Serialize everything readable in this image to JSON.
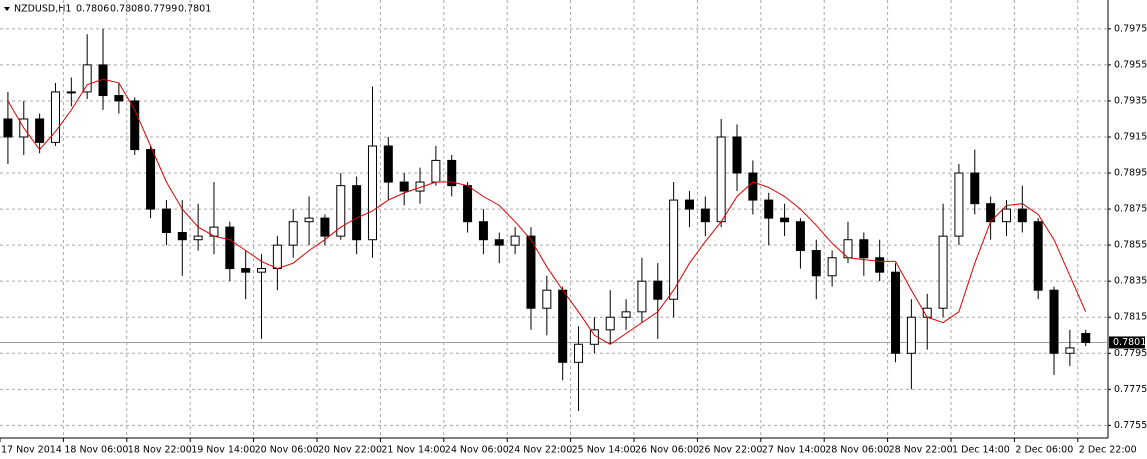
{
  "chart_data": {
    "type": "candlestick",
    "title": "NZDUSD,H1",
    "header_ohlc": [
      0.7806,
      0.7808,
      0.7799,
      0.7801
    ],
    "categories": [
      "17 Nov 2014",
      null,
      null,
      null,
      "18 Nov 06:00",
      null,
      null,
      null,
      "18 Nov 22:00",
      null,
      null,
      null,
      "19 Nov 14:00",
      null,
      null,
      null,
      "20 Nov 06:00",
      null,
      null,
      null,
      "20 Nov 22:00",
      null,
      null,
      null,
      "21 Nov 14:00",
      null,
      null,
      null,
      "24 Nov 06:00",
      null,
      null,
      null,
      "24 Nov 22:00",
      null,
      null,
      null,
      "25 Nov 14:00",
      null,
      null,
      null,
      "26 Nov 06:00",
      null,
      null,
      null,
      "26 Nov 22:00",
      null,
      null,
      null,
      "27 Nov 14:00",
      null,
      null,
      null,
      "28 Nov 06:00",
      null,
      null,
      null,
      "28 Nov 22:00",
      null,
      null,
      null,
      "1 Dec 14:00",
      null,
      null,
      null,
      "2 Dec 06:00",
      null,
      null,
      null,
      "2 Dec 22:00"
    ],
    "open": [
      0.7925,
      0.7915,
      0.7925,
      0.7912,
      0.794,
      0.794,
      0.7955,
      0.7938,
      0.7935,
      0.7908,
      0.7875,
      0.7862,
      0.7858,
      0.786,
      0.7865,
      0.7842,
      0.784,
      0.7842,
      0.7855,
      0.7868,
      0.787,
      0.786,
      0.7888,
      0.7858,
      0.791,
      0.789,
      0.7885,
      0.789,
      0.7902,
      0.7888,
      0.7868,
      0.7858,
      0.7855,
      0.786,
      0.782,
      0.783,
      0.779,
      0.78,
      0.7808,
      0.7815,
      0.7818,
      0.7835,
      0.7825,
      0.788,
      0.7875,
      0.7868,
      0.7915,
      0.7895,
      0.788,
      0.787,
      0.7868,
      0.7852,
      0.7838,
      0.7848,
      0.7858,
      0.7848,
      0.784,
      0.7795,
      0.7815,
      0.782,
      0.786,
      0.7895,
      0.7878,
      0.7868,
      0.7875,
      0.7868,
      0.783,
      0.7795,
      0.7806
    ],
    "high": [
      0.794,
      0.7935,
      0.7928,
      0.7945,
      0.7948,
      0.7972,
      0.7975,
      0.7945,
      0.7937,
      0.791,
      0.788,
      0.788,
      0.7878,
      0.789,
      0.7868,
      0.7852,
      0.785,
      0.786,
      0.7875,
      0.7882,
      0.7872,
      0.7895,
      0.7893,
      0.7943,
      0.7915,
      0.7895,
      0.7898,
      0.791,
      0.7905,
      0.789,
      0.7875,
      0.7862,
      0.7865,
      0.7865,
      0.7838,
      0.7832,
      0.781,
      0.7815,
      0.783,
      0.7825,
      0.7848,
      0.7845,
      0.789,
      0.7885,
      0.7882,
      0.7925,
      0.7922,
      0.7902,
      0.7884,
      0.7878,
      0.787,
      0.7858,
      0.7852,
      0.7868,
      0.7862,
      0.7858,
      0.7845,
      0.7825,
      0.7828,
      0.7878,
      0.79,
      0.7908,
      0.7882,
      0.788,
      0.7888,
      0.787,
      0.7832,
      0.7808,
      0.7808
    ],
    "low": [
      0.79,
      0.7905,
      0.7906,
      0.791,
      0.7932,
      0.7936,
      0.793,
      0.7928,
      0.7905,
      0.787,
      0.7855,
      0.7838,
      0.7852,
      0.785,
      0.7835,
      0.7825,
      0.7803,
      0.783,
      0.7848,
      0.7855,
      0.7855,
      0.7858,
      0.785,
      0.7848,
      0.788,
      0.7877,
      0.7878,
      0.7888,
      0.7882,
      0.7862,
      0.785,
      0.7845,
      0.785,
      0.7808,
      0.7805,
      0.778,
      0.7763,
      0.7795,
      0.78,
      0.7808,
      0.7812,
      0.7803,
      0.7815,
      0.7865,
      0.786,
      0.7865,
      0.7885,
      0.7872,
      0.7855,
      0.786,
      0.7842,
      0.7825,
      0.7832,
      0.7845,
      0.7838,
      0.7835,
      0.779,
      0.7775,
      0.7797,
      0.7815,
      0.7855,
      0.7872,
      0.7858,
      0.786,
      0.7862,
      0.7825,
      0.7783,
      0.7788,
      0.7799
    ],
    "close": [
      0.7915,
      0.7925,
      0.7912,
      0.794,
      0.794,
      0.7955,
      0.7938,
      0.7935,
      0.7908,
      0.7875,
      0.7862,
      0.7858,
      0.786,
      0.7865,
      0.7842,
      0.784,
      0.7842,
      0.7855,
      0.7868,
      0.787,
      0.786,
      0.7888,
      0.7858,
      0.791,
      0.789,
      0.7885,
      0.789,
      0.7902,
      0.7888,
      0.7868,
      0.7858,
      0.7855,
      0.786,
      0.782,
      0.783,
      0.779,
      0.78,
      0.7808,
      0.7815,
      0.7818,
      0.7835,
      0.7825,
      0.788,
      0.7875,
      0.7868,
      0.7915,
      0.7895,
      0.788,
      0.787,
      0.7868,
      0.7852,
      0.7838,
      0.7848,
      0.7858,
      0.7848,
      0.784,
      0.7795,
      0.7815,
      0.782,
      0.786,
      0.7895,
      0.7878,
      0.7868,
      0.7875,
      0.7868,
      0.783,
      0.7795,
      0.7798,
      0.7801
    ],
    "ma_values": [
      0.7935,
      0.792,
      0.7908,
      0.7918,
      0.793,
      0.7944,
      0.7947,
      0.7945,
      0.793,
      0.791,
      0.789,
      0.7875,
      0.7865,
      0.786,
      0.7858,
      0.7852,
      0.7846,
      0.7842,
      0.7845,
      0.7852,
      0.7858,
      0.7865,
      0.787,
      0.7874,
      0.788,
      0.7884,
      0.7887,
      0.789,
      0.789,
      0.7888,
      0.7882,
      0.7877,
      0.7868,
      0.7858,
      0.7843,
      0.783,
      0.7818,
      0.7805,
      0.78,
      0.7806,
      0.7812,
      0.7818,
      0.783,
      0.7845,
      0.7857,
      0.7868,
      0.7882,
      0.789,
      0.7887,
      0.7882,
      0.7875,
      0.7866,
      0.7856,
      0.7848,
      0.7847,
      0.7846,
      0.7846,
      0.783,
      0.7815,
      0.7812,
      0.7818,
      0.7845,
      0.7868,
      0.7877,
      0.7878,
      0.7872,
      0.7858,
      0.7838,
      0.7818
    ],
    "ma_color": "#dd0000",
    "current_price": 0.7801,
    "ylim": [
      0.7748,
      0.7991
    ],
    "yticks": [
      0.7755,
      0.7775,
      0.7795,
      0.7815,
      0.7835,
      0.7855,
      0.7875,
      0.7895,
      0.7915,
      0.7935,
      0.7955,
      0.7975
    ],
    "grid": true
  }
}
